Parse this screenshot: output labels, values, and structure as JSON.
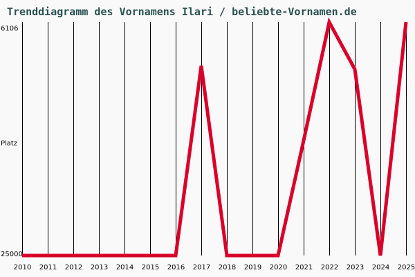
{
  "header": {
    "title": "Trenddiagramm des Vornamens Ilari / beliebte-Vornamen.de"
  },
  "colors": {
    "background": "#f9f9f9",
    "title": "#2a5050",
    "line": "#d9002a",
    "grid": "#000000"
  },
  "chart_data": {
    "type": "line",
    "title": "Trenddiagramm des Vornamens Ilari / beliebte-Vornamen.de",
    "xlabel": "",
    "ylabel": "Platz",
    "y_inverted": true,
    "ylim": [
      25000,
      6106
    ],
    "y_tick_labels": [
      "6106",
      "Platz",
      "25000"
    ],
    "grid": "vertical lines at each year",
    "categories": [
      "2010",
      "2011",
      "2012",
      "2013",
      "2014",
      "2015",
      "2016",
      "2017",
      "2018",
      "2019",
      "2020",
      "2021",
      "2022",
      "2023",
      "2024",
      "2025"
    ],
    "series": [
      {
        "name": "Ilari",
        "values": [
          25000,
          25000,
          25000,
          25000,
          25000,
          25000,
          25000,
          9640,
          25000,
          25000,
          25000,
          15690,
          6106,
          9920,
          25000,
          6106
        ]
      }
    ]
  },
  "axes": {
    "y_top": "6106",
    "y_mid": "Platz",
    "y_bottom": "25000"
  }
}
